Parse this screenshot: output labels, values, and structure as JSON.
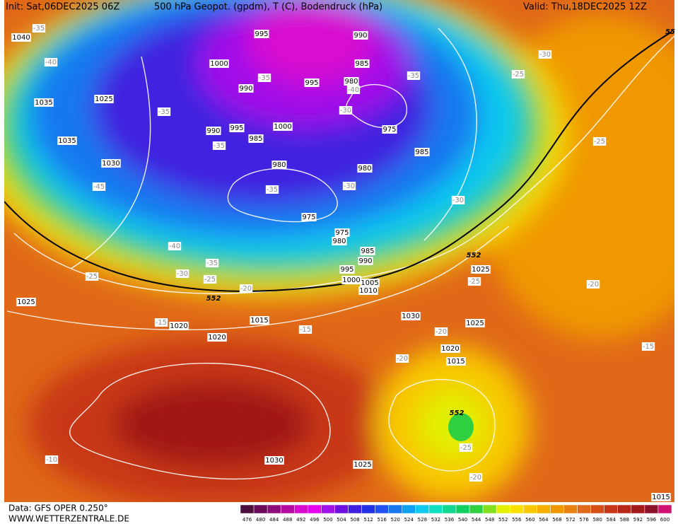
{
  "header": {
    "init": "Init: Sat,06DEC2025 06Z",
    "title": "500 hPa Geopot. (gpdm), T (C), Bodendruck (hPa)",
    "valid": "Valid: Thu,18DEC2025 12Z"
  },
  "footer": {
    "data_source": "Data: GFS OPER 0.250°",
    "website": "WWW.WETTERZENTRALE.DE"
  },
  "pressure_labels": [
    1040,
    1035,
    1025,
    1035,
    1030,
    995,
    1000,
    990,
    995,
    990,
    985,
    980,
    1000,
    990,
    995,
    985,
    975,
    985,
    980,
    980,
    975,
    975,
    980,
    985,
    990,
    995,
    1000,
    1005,
    1010,
    1025,
    1030,
    1025,
    1020,
    1015,
    1015,
    1020,
    1020,
    1025,
    1030,
    1025,
    1015
  ],
  "temperature_labels": [
    -35,
    -40,
    -35,
    -45,
    -40,
    -30,
    -35,
    -25,
    -20,
    -25,
    -15,
    -15,
    -35,
    -40,
    -30,
    -35,
    -35,
    -35,
    -30,
    -30,
    -30,
    -25,
    -25,
    -20,
    -25,
    -20,
    -20,
    -15,
    -25,
    -20,
    -10
  ],
  "height_labels": [
    552,
    552,
    552,
    55
  ],
  "colorbar": {
    "labels": [
      476,
      480,
      484,
      488,
      492,
      496,
      500,
      504,
      508,
      512,
      516,
      520,
      524,
      528,
      532,
      536,
      540,
      544,
      548,
      552,
      556,
      560,
      564,
      568,
      572,
      576,
      580,
      584,
      588,
      592,
      596,
      600
    ],
    "colors": [
      "#4b0f3c",
      "#6b0a5a",
      "#8c0a7a",
      "#b40aa0",
      "#d80ad0",
      "#e600f0",
      "#a010e8",
      "#7010e0",
      "#4020e0",
      "#2030e0",
      "#2050f0",
      "#1878f0",
      "#10a0f0",
      "#10c8f0",
      "#10e0c0",
      "#10d890",
      "#10d060",
      "#30d040",
      "#80e020",
      "#e0f000",
      "#f8e000",
      "#f8c800",
      "#f8b000",
      "#f09800",
      "#e88010",
      "#e06818",
      "#d85018",
      "#c83818",
      "#b82818",
      "#a01818",
      "#8c1028",
      "#d01070"
    ]
  }
}
